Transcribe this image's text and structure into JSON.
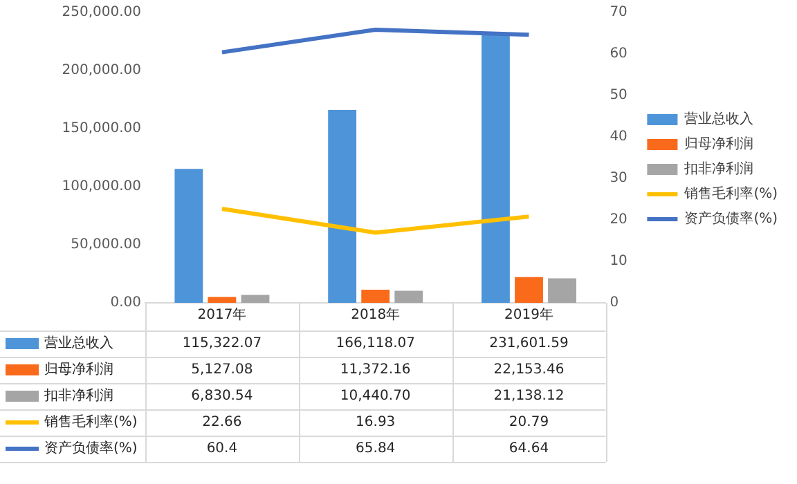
{
  "chart_data": {
    "type": "bar",
    "categories": [
      "2017年",
      "2018年",
      "2019年"
    ],
    "series": [
      {
        "name": "营业总收入",
        "color": "#4e94d8",
        "values": [
          115322.07,
          166118.07,
          231601.59
        ],
        "value_labels": [
          "115,322.07",
          "166,118.07",
          "231,601.59"
        ]
      },
      {
        "name": "归母净利润",
        "color": "#f96a1b",
        "values": [
          5127.08,
          11372.16,
          22153.46
        ],
        "value_labels": [
          "5,127.08",
          "11,372.16",
          "22,153.46"
        ]
      },
      {
        "name": "扣非净利润",
        "color": "#a5a5a5",
        "values": [
          6830.54,
          10440.7,
          21138.12
        ],
        "value_labels": [
          "6,830.54",
          "10,440.70",
          "21,138.12"
        ]
      },
      {
        "name": "销售毛利率(%)",
        "type": "line",
        "axis": "y2",
        "color": "#ffc000",
        "values": [
          22.66,
          16.93,
          20.79
        ],
        "value_labels": [
          "22.66",
          "16.93",
          "20.79"
        ]
      },
      {
        "name": "资产负债率(%)",
        "type": "line",
        "axis": "y2",
        "color": "#4472c4",
        "values": [
          60.4,
          65.84,
          64.64
        ],
        "value_labels": [
          "60.4",
          "65.84",
          "64.64"
        ]
      }
    ],
    "ylim": [
      0,
      250000
    ],
    "yticks": [
      {
        "value": 0,
        "label": "0.00"
      },
      {
        "value": 50000,
        "label": "50,000.00"
      },
      {
        "value": 100000,
        "label": "100,000.00"
      },
      {
        "value": 150000,
        "label": "150,000.00"
      },
      {
        "value": 200000,
        "label": "200,000.00"
      },
      {
        "value": 250000,
        "label": "250,000.00"
      }
    ],
    "y2lim": [
      0,
      70
    ],
    "y2ticks": [
      0,
      10,
      20,
      30,
      40,
      50,
      60,
      70
    ],
    "grid": false,
    "legend": "right",
    "marker": "none",
    "line_style": "solid"
  }
}
